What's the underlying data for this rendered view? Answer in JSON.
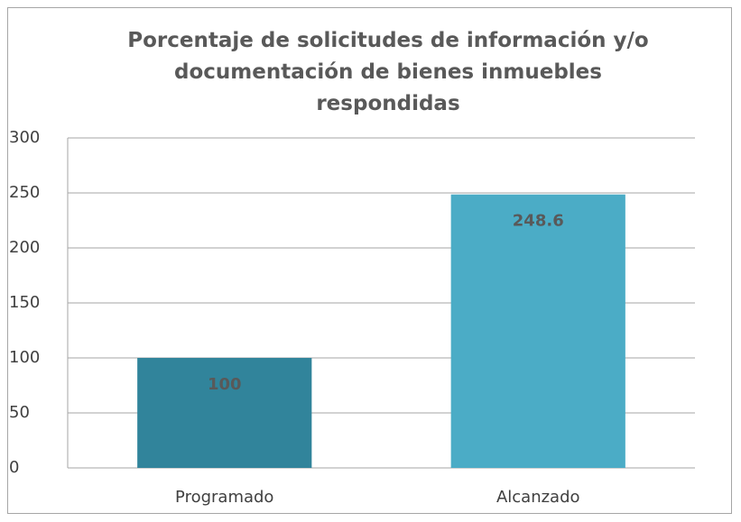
{
  "chart_data": {
    "type": "bar",
    "title": "Porcentaje de solicitudes de información y/o documentación de bienes inmuebles respondidas",
    "categories": [
      "Programado",
      "Alcanzado"
    ],
    "values": [
      100,
      248.6
    ],
    "colors": [
      "#31849b",
      "#4bacc6"
    ],
    "ylim": [
      0,
      300
    ],
    "yticks": [
      0,
      50,
      100,
      150,
      200,
      250,
      300
    ],
    "grid": true
  }
}
